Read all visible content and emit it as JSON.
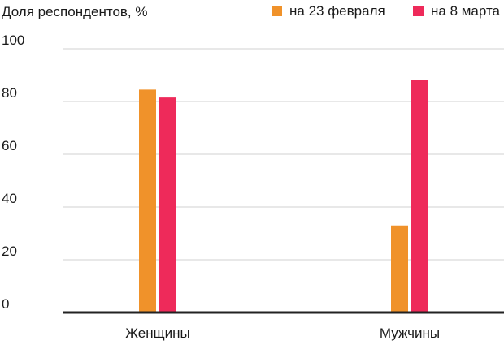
{
  "chart_data": {
    "type": "bar",
    "title": "",
    "ylabel": "Доля респондентов, %",
    "xlabel": "",
    "categories": [
      "Женщины",
      "Мужчины"
    ],
    "series": [
      {
        "name": "на 23 февраля",
        "values": [
          84.5,
          33
        ],
        "color": "#F0922A"
      },
      {
        "name": "на 8 марта",
        "values": [
          81.5,
          88
        ],
        "color": "#EE2A5A"
      }
    ],
    "ylim": [
      0,
      100
    ],
    "yticks": [
      "0",
      "20",
      "40",
      "60",
      "80",
      "100"
    ],
    "grid": true,
    "legend_position": "top-right"
  }
}
